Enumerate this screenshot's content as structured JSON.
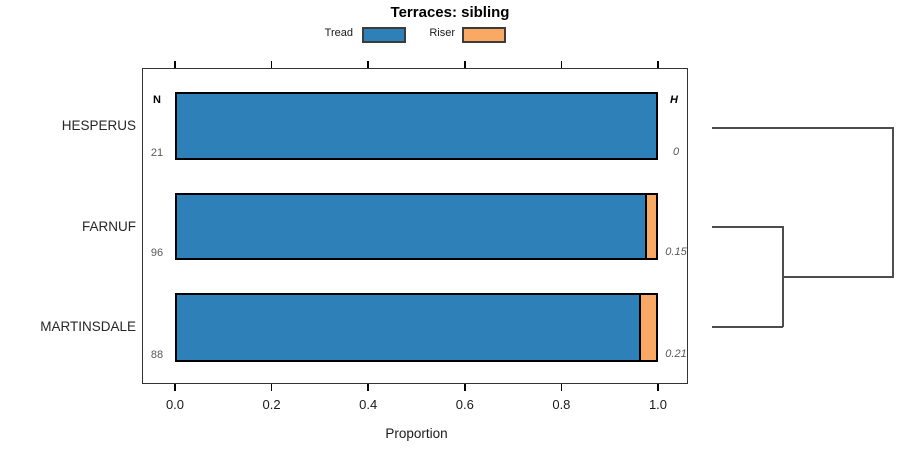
{
  "chart_data": {
    "type": "bar",
    "orientation": "horizontal",
    "stacked": true,
    "title": "Terraces: sibling",
    "xlabel": "Proportion",
    "xlim": [
      0,
      1
    ],
    "xticks": [
      0.0,
      0.2,
      0.4,
      0.6,
      0.8,
      1.0
    ],
    "xtick_labels": [
      "0.0",
      "0.2",
      "0.4",
      "0.6",
      "0.8",
      "1.0"
    ],
    "grid": false,
    "legend_position": "top",
    "categories": [
      "HESPERUS",
      "FARNUF",
      "MARTINSDALE"
    ],
    "series": [
      {
        "name": "Tread",
        "color": "#2e81b8",
        "values": [
          1.0,
          0.978,
          0.964
        ]
      },
      {
        "name": "Riser",
        "color": "#f9a963",
        "values": [
          0.0,
          0.022,
          0.036
        ]
      }
    ],
    "n_header": "N",
    "n_values": [
      21,
      96,
      88
    ],
    "h_header": "H",
    "h_labels": [
      "0",
      "0.15",
      "0.21"
    ],
    "dendrogram": {
      "position": "right",
      "joins": [
        {
          "members": [
            "FARNUF",
            "MARTINSDALE"
          ],
          "order": 1
        },
        {
          "members": [
            "HESPERUS",
            "(FARNUF,MARTINSDALE)"
          ],
          "order": 2
        }
      ]
    }
  }
}
